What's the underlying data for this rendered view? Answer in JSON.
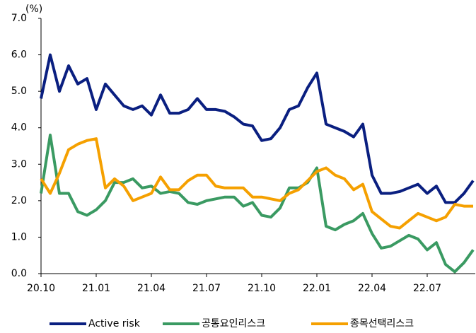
{
  "chart_data": {
    "type": "line",
    "y_unit": "(%)",
    "categories": [
      "20.10",
      null,
      null,
      null,
      null,
      null,
      "21.01",
      null,
      null,
      null,
      null,
      null,
      "21.04",
      null,
      null,
      null,
      null,
      null,
      "21.07",
      null,
      null,
      null,
      null,
      null,
      "21.10",
      null,
      null,
      null,
      null,
      null,
      "22.01",
      null,
      null,
      null,
      null,
      null,
      "22.04",
      null,
      null,
      null,
      null,
      null,
      "22.07",
      null,
      null,
      null,
      null,
      null
    ],
    "series": [
      {
        "name": "Active risk",
        "color": "#0a1f80",
        "values": [
          4.8,
          6.0,
          5.0,
          5.7,
          5.2,
          5.35,
          4.5,
          5.2,
          4.9,
          4.6,
          4.5,
          4.6,
          4.35,
          4.9,
          4.4,
          4.4,
          4.5,
          4.8,
          4.5,
          4.5,
          4.45,
          4.3,
          4.1,
          4.05,
          3.65,
          3.7,
          4.0,
          4.5,
          4.6,
          5.1,
          5.5,
          4.1,
          4.0,
          3.9,
          3.75,
          4.1,
          2.7,
          2.2,
          2.2,
          2.25,
          2.35,
          2.45,
          2.2,
          2.4,
          1.95,
          1.95,
          2.2,
          2.55
        ]
      },
      {
        "name": "공통요인리스크",
        "color": "#3a9a62",
        "values": [
          2.2,
          3.8,
          2.2,
          2.2,
          1.7,
          1.6,
          1.75,
          2.0,
          2.5,
          2.5,
          2.6,
          2.35,
          2.4,
          2.2,
          2.25,
          2.2,
          1.95,
          1.9,
          2.0,
          2.05,
          2.1,
          2.1,
          1.85,
          1.95,
          1.6,
          1.55,
          1.8,
          2.35,
          2.35,
          2.5,
          2.9,
          1.3,
          1.2,
          1.35,
          1.45,
          1.65,
          1.1,
          0.7,
          0.75,
          0.9,
          1.05,
          0.95,
          0.65,
          0.85,
          0.25,
          0.05,
          0.3,
          0.65
        ]
      },
      {
        "name": "종목선택리스크",
        "color": "#f5a000",
        "values": [
          2.6,
          2.2,
          2.75,
          3.4,
          3.55,
          3.65,
          3.7,
          2.35,
          2.6,
          2.4,
          2.0,
          2.1,
          2.2,
          2.65,
          2.3,
          2.3,
          2.55,
          2.7,
          2.7,
          2.4,
          2.35,
          2.35,
          2.35,
          2.1,
          2.1,
          2.05,
          2.0,
          2.2,
          2.3,
          2.55,
          2.8,
          2.9,
          2.7,
          2.6,
          2.3,
          2.45,
          1.7,
          1.5,
          1.3,
          1.25,
          1.45,
          1.65,
          1.55,
          1.45,
          1.55,
          1.9,
          1.85,
          1.85
        ]
      }
    ],
    "ylim": [
      0,
      7
    ],
    "yticks": [
      {
        "value": 0,
        "label": "0.0"
      },
      {
        "value": 1,
        "label": "1.0"
      },
      {
        "value": 2,
        "label": "2.0"
      },
      {
        "value": 3,
        "label": "3.0"
      },
      {
        "value": 4,
        "label": "4.0"
      },
      {
        "value": 5,
        "label": "5.0"
      },
      {
        "value": 6,
        "label": "6.0"
      },
      {
        "value": 7,
        "label": "7.0"
      }
    ],
    "grid": false,
    "legend": "bottom"
  }
}
